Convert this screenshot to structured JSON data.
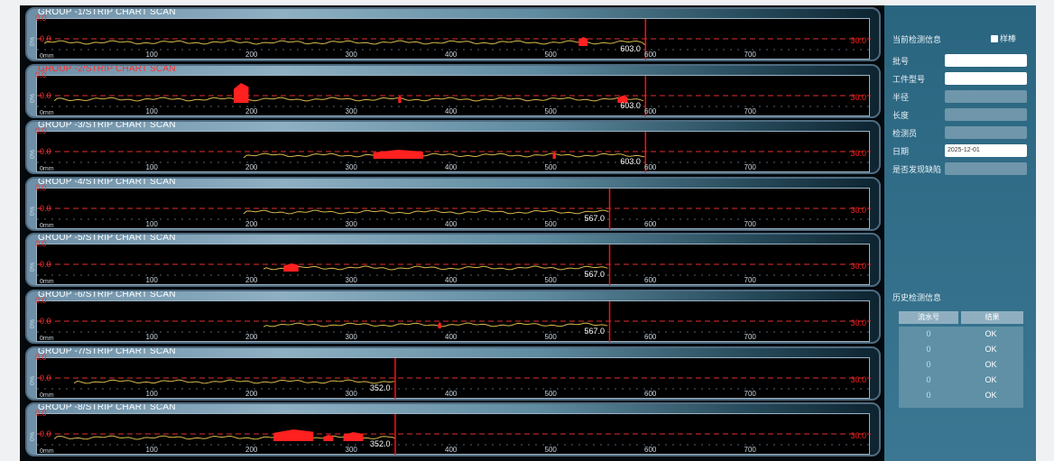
{
  "strips": [
    {
      "title": "GROUP -1/STRIP CHART SCAN",
      "alarm": false,
      "top_label": "0.0",
      "mid_label": "0.0",
      "pct_label": "0%",
      "mm_label": "0mm",
      "value_label": "603.0",
      "threshold_label": "30.0",
      "marker_pos": 603,
      "color_trace": "#d9b94a"
    },
    {
      "title": "GROUP -2/STRIP CHART SCAN",
      "alarm": true,
      "top_label": "0.0",
      "mid_label": "0.0",
      "pct_label": "0%",
      "mm_label": "0mm",
      "value_label": "603.0",
      "threshold_label": "30.0",
      "marker_pos": 603,
      "color_trace": "#d9b94a"
    },
    {
      "title": "GROUP -3/STRIP CHART SCAN",
      "alarm": false,
      "top_label": "0.0",
      "mid_label": "0.0",
      "pct_label": "0%",
      "mm_label": "0mm",
      "value_label": "603.0",
      "threshold_label": "30.0",
      "marker_pos": 603,
      "color_trace": "#d9b94a"
    },
    {
      "title": "GROUP -4/STRIP CHART SCAN",
      "alarm": false,
      "top_label": "0.0",
      "mid_label": "0.0",
      "pct_label": "0%",
      "mm_label": "0mm",
      "value_label": "567.0",
      "threshold_label": "30.0",
      "marker_pos": 567,
      "color_trace": "#d9b94a"
    },
    {
      "title": "GROUP -5/STRIP CHART SCAN",
      "alarm": false,
      "top_label": "0.0",
      "mid_label": "0.0",
      "pct_label": "0%",
      "mm_label": "0mm",
      "value_label": "567.0",
      "threshold_label": "30.0",
      "marker_pos": 567,
      "color_trace": "#d9b94a"
    },
    {
      "title": "GROUP -6/STRIP CHART SCAN",
      "alarm": false,
      "top_label": "0.0",
      "mid_label": "0.0",
      "pct_label": "0%",
      "mm_label": "0mm",
      "value_label": "567.0",
      "threshold_label": "30.0",
      "marker_pos": 567,
      "color_trace": "#d9b94a"
    },
    {
      "title": "GROUP -7/STRIP CHART SCAN",
      "alarm": false,
      "top_label": "0.0",
      "mid_label": "0.0",
      "pct_label": "0%",
      "mm_label": "0mm",
      "value_label": "352.0",
      "threshold_label": "30.0",
      "marker_pos": 352,
      "color_trace": "#d9b94a"
    },
    {
      "title": "GROUP -8/STRIP CHART SCAN",
      "alarm": false,
      "top_label": "0.0",
      "mid_label": "0.0",
      "pct_label": "0%",
      "mm_label": "0mm",
      "value_label": "352.0",
      "threshold_label": "30.0",
      "marker_pos": 352,
      "color_trace": "#d9b94a"
    }
  ],
  "axis_ticks": [
    "100",
    "200",
    "300",
    "400",
    "500",
    "600",
    "700"
  ],
  "panel": {
    "title": "当前检测信息",
    "sample_checkbox": "样棒",
    "fields": [
      {
        "label": "批号",
        "value": "",
        "style": "white"
      },
      {
        "label": "工件型号",
        "value": "",
        "style": "white"
      },
      {
        "label": "半径",
        "value": "",
        "style": "grey"
      },
      {
        "label": "长度",
        "value": "",
        "style": "grey"
      },
      {
        "label": "检测员",
        "value": "",
        "style": "grey"
      },
      {
        "label": "日期",
        "value": "2025-12-01",
        "style": "white"
      },
      {
        "label": "是否发现缺陷",
        "value": "",
        "style": "grey"
      }
    ],
    "history_title": "历史检测信息",
    "history_headers": [
      "流水号",
      "结果"
    ],
    "history_rows": [
      {
        "serial": "0",
        "result": "OK"
      },
      {
        "serial": "0",
        "result": "OK"
      },
      {
        "serial": "0",
        "result": "OK"
      },
      {
        "serial": "0",
        "result": "OK"
      },
      {
        "serial": "0",
        "result": "OK"
      }
    ]
  },
  "colors": {
    "threshold": "#e03030",
    "alarm_fill": "#ff2020",
    "trace": "#d9b94a",
    "background": "#04090d"
  }
}
